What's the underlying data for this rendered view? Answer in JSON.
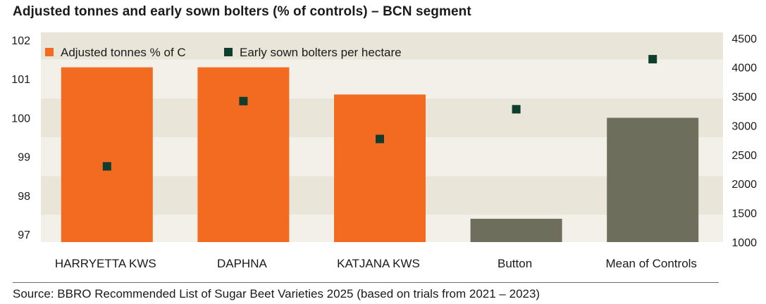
{
  "title": "Adjusted tonnes and early sown bolters (% of controls) – BCN segment",
  "source": "Source: BBRO Recommended List of Sugar Beet Varieties 2025 (based on trials from 2021 – 2023)",
  "colors": {
    "varieties": "#f36b21",
    "controls": "#6e6e5c",
    "bolters": "#0f3e2e",
    "band_dark": "#e9e6d9",
    "band_light": "#f2f0e8"
  },
  "chart_data": {
    "type": "bar",
    "categories": [
      "HARRYETTA KWS",
      "DAPHNA",
      "KATJANA KWS",
      "Button",
      "Mean of Controls"
    ],
    "series": [
      {
        "name": "Adjusted tonnes % of C",
        "type": "bar",
        "axis": "left",
        "values": [
          101.3,
          101.3,
          100.6,
          97.4,
          100.0
        ],
        "colors": [
          "#f36b21",
          "#f36b21",
          "#f36b21",
          "#6e6e5c",
          "#6e6e5c"
        ]
      },
      {
        "name": "Early sown bolters per hectare",
        "type": "scatter",
        "axis": "right",
        "values": [
          2300,
          3420,
          2770,
          3280,
          4140
        ],
        "color": "#0f3e2e"
      }
    ],
    "y_left": {
      "ylim": [
        96.8,
        102.2
      ],
      "ticks": [
        97,
        98,
        99,
        100,
        101,
        102
      ]
    },
    "y_right": {
      "ylim": [
        1000,
        4600
      ],
      "ticks": [
        1000,
        1500,
        2000,
        2500,
        3000,
        3500,
        4000,
        4500
      ]
    },
    "legend_position": "top-left",
    "grid": false,
    "background_bands": true
  }
}
